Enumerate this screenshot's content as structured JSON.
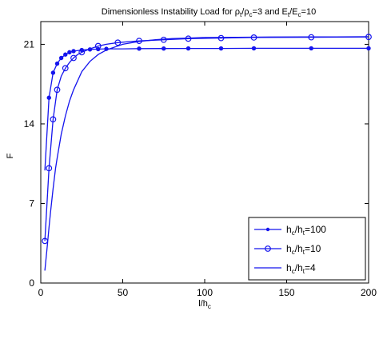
{
  "chart_data": {
    "type": "line",
    "title": {
      "pre": "Dimensionless Instability Load for ",
      "rho": "ρ",
      "t": "t",
      "slash": "/",
      "c": "c",
      "eq1": "=3 and E",
      "e_end": "=10"
    },
    "xlabel": {
      "main": "l/h",
      "sub": "c"
    },
    "ylabel": "F",
    "xlim": [
      0,
      200
    ],
    "ylim": [
      0,
      23
    ],
    "xticks": [
      0,
      50,
      100,
      150,
      200
    ],
    "yticks": [
      0,
      7,
      14,
      21
    ],
    "grid": false,
    "legend_position": "bottom-right",
    "colors": {
      "series": "#1515ee",
      "axis": "#000000",
      "background": "#ffffff"
    },
    "series": [
      {
        "name": "h_c/h_t=100",
        "legend": {
          "h": "h",
          "c": "c",
          "slash": "/h",
          "t": "t",
          "eq": "=100"
        },
        "marker": "dot",
        "x": [
          2.5,
          5,
          7.5,
          10,
          12.5,
          15,
          17.5,
          20,
          25,
          30,
          35,
          40,
          50,
          60,
          75,
          90,
          110,
          130,
          165,
          200
        ],
        "y": [
          9.9,
          16.3,
          18.5,
          19.3,
          19.8,
          20.1,
          20.3,
          20.4,
          20.5,
          20.55,
          20.58,
          20.6,
          20.6,
          20.62,
          20.63,
          20.64,
          20.64,
          20.65,
          20.65,
          20.65
        ],
        "marker_x": [
          5,
          7.5,
          10,
          12.5,
          15,
          17.5,
          20,
          25,
          30,
          35,
          40,
          60,
          75,
          90,
          110,
          130,
          165,
          200
        ]
      },
      {
        "name": "h_c/h_t=10",
        "legend": {
          "h": "h",
          "c": "c",
          "slash": "/h",
          "t": "t",
          "eq": "=10"
        },
        "marker": "circle",
        "x": [
          2.5,
          5,
          7.5,
          10,
          12.5,
          15,
          17.5,
          20,
          22.5,
          25,
          30,
          35,
          40,
          47,
          55,
          60,
          75,
          90,
          110,
          130,
          165,
          200
        ],
        "y": [
          3.7,
          10.1,
          14.4,
          17.0,
          18.2,
          18.9,
          19.4,
          19.8,
          20.1,
          20.3,
          20.6,
          20.85,
          21.0,
          21.15,
          21.25,
          21.3,
          21.4,
          21.5,
          21.55,
          21.6,
          21.62,
          21.65
        ],
        "marker_x": [
          2.5,
          5,
          7.5,
          10,
          15,
          20,
          25,
          35,
          47,
          60,
          75,
          90,
          110,
          130,
          165,
          200
        ]
      },
      {
        "name": "h_c/h_t=4",
        "legend": {
          "h": "h",
          "c": "c",
          "slash": "/h",
          "t": "t",
          "eq": "=4"
        },
        "marker": "none",
        "x": [
          2.5,
          4,
          5,
          6,
          7.5,
          9,
          10,
          12.5,
          15,
          17.5,
          20,
          25,
          30,
          35,
          40,
          50,
          60,
          70,
          80,
          90,
          100,
          120,
          140,
          160,
          180,
          200
        ],
        "y": [
          1.1,
          3.3,
          4.9,
          6.3,
          8.3,
          10.1,
          11.0,
          13.1,
          14.7,
          16.0,
          17.0,
          18.6,
          19.5,
          20.1,
          20.5,
          21.0,
          21.25,
          21.4,
          21.5,
          21.55,
          21.6,
          21.62,
          21.64,
          21.65,
          21.66,
          21.67
        ]
      }
    ]
  }
}
